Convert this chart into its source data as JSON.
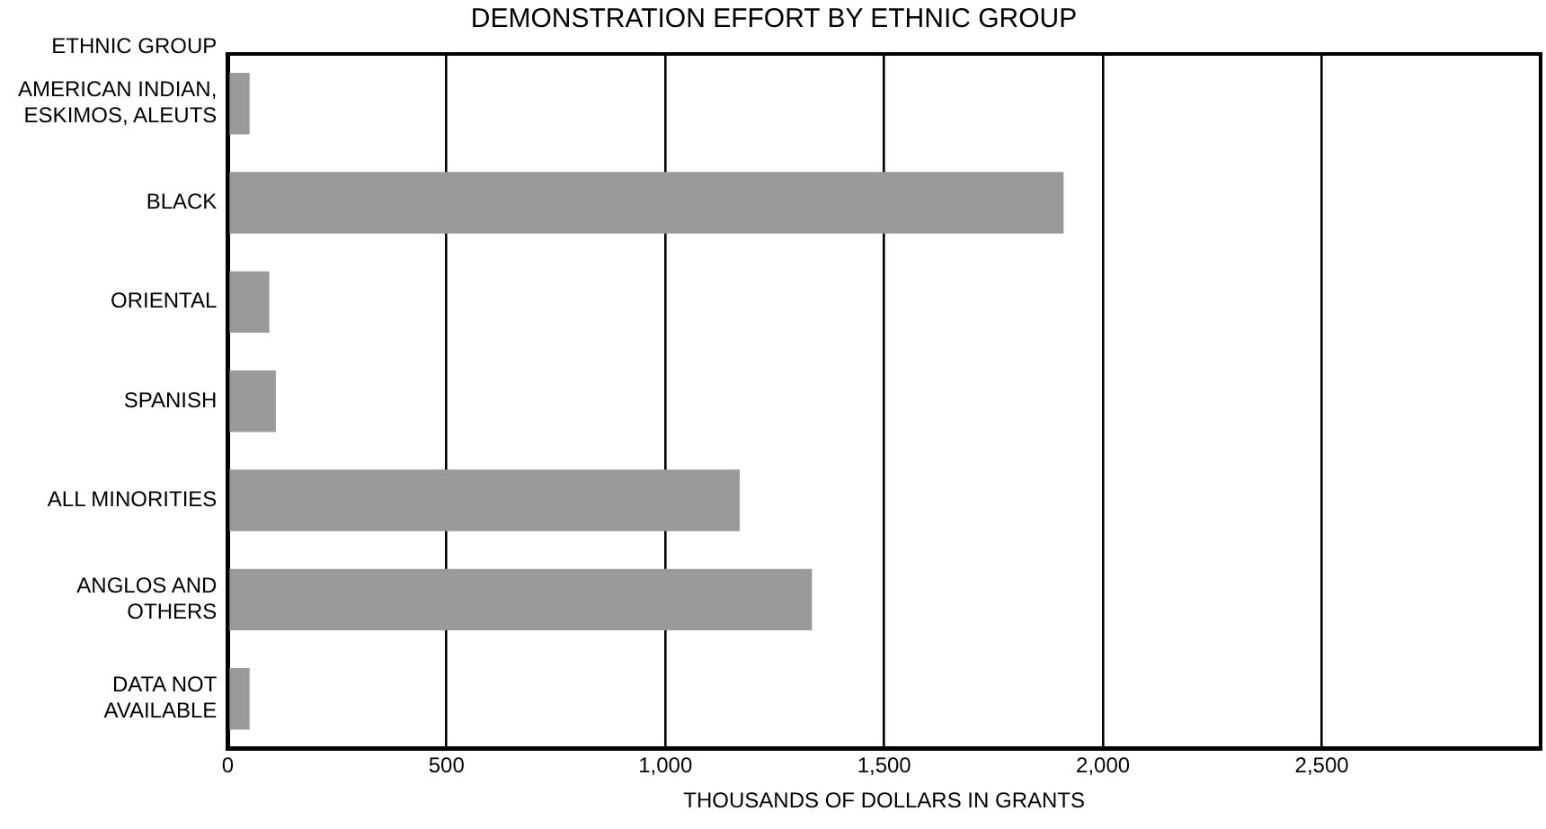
{
  "chart_data": {
    "type": "bar",
    "orientation": "horizontal",
    "title": "DEMONSTRATION EFFORT BY ETHNIC GROUP",
    "ylabel": "ETHNIC GROUP",
    "xlabel": "THOUSANDS OF DOLLARS IN GRANTS",
    "categories": [
      "AMERICAN INDIAN, ESKIMOS, ALEUTS",
      "BLACK",
      "ORIENTAL",
      "SPANISH",
      "ALL MINORITIES",
      "ANGLOS AND OTHERS",
      "DATA NOT AVAILABLE"
    ],
    "values": [
      50,
      1910,
      95,
      110,
      1170,
      1335,
      50
    ],
    "color": "#9a9a9a",
    "xlim": [
      0,
      3000
    ],
    "xticks": [
      0,
      {
        "value": 500,
        "label": "500"
      },
      {
        "value": 1000,
        "label": "1,000"
      },
      {
        "value": 1500,
        "label": "1,500"
      },
      {
        "value": 2000,
        "label": "2,000"
      },
      {
        "value": 2500,
        "label": "2,500"
      }
    ],
    "grid": "x",
    "legend": false
  }
}
